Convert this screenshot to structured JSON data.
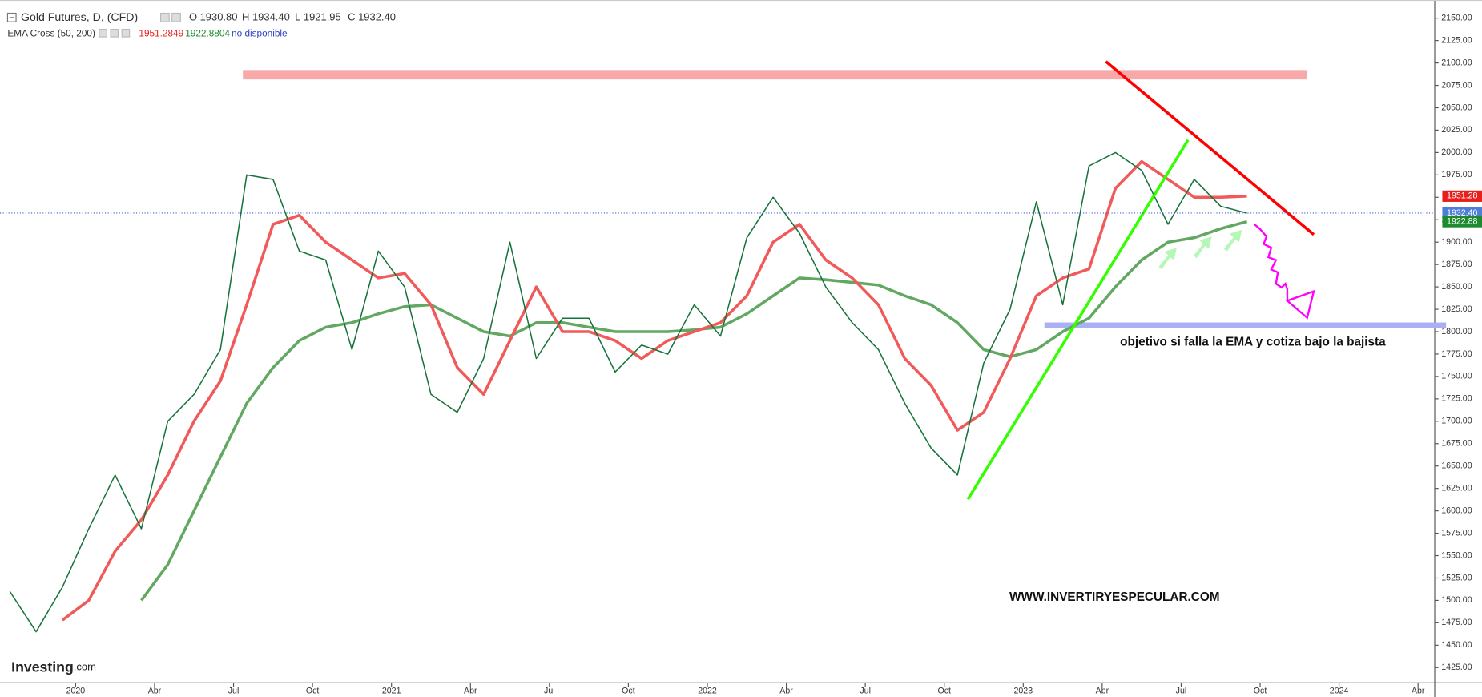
{
  "chart_data": {
    "type": "line",
    "title": "Gold Futures, D, (CFD)",
    "ohlc": [
      {
        "label": "O",
        "text": "1930.80"
      },
      {
        "label": "H",
        "text": "1934.40"
      },
      {
        "label": "L",
        "text": "1921.95"
      },
      {
        "label": "C",
        "text": "1932.40"
      }
    ],
    "indicator": {
      "name": "EMA Cross (50, 200)",
      "readouts": [
        {
          "text": "1951.2849",
          "color": "#e8201c"
        },
        {
          "text": "1922.8804",
          "color": "#1e8a2e"
        }
      ],
      "status": "no disponible"
    },
    "x": [
      "2019-10",
      "2019-11",
      "2019-12",
      "2020-01",
      "2020-02",
      "2020-03",
      "2020-04",
      "2020-05",
      "2020-06",
      "2020-07",
      "2020-08",
      "2020-09",
      "2020-10",
      "2020-11",
      "2020-12",
      "2021-01",
      "2021-02",
      "2021-03",
      "2021-04",
      "2021-05",
      "2021-06",
      "2021-07",
      "2021-08",
      "2021-09",
      "2021-10",
      "2021-11",
      "2021-12",
      "2022-01",
      "2022-02",
      "2022-03",
      "2022-04",
      "2022-05",
      "2022-06",
      "2022-07",
      "2022-08",
      "2022-09",
      "2022-10",
      "2022-11",
      "2022-12",
      "2023-01",
      "2023-02",
      "2023-03",
      "2023-04",
      "2023-05",
      "2023-06",
      "2023-07",
      "2023-08",
      "2023-09"
    ],
    "series": [
      {
        "color": "#16733a",
        "width": 1.3,
        "values": [
          1510,
          1465,
          1515,
          1580,
          1640,
          1580,
          1700,
          1730,
          1780,
          1975,
          1970,
          1890,
          1880,
          1780,
          1890,
          1850,
          1730,
          1710,
          1770,
          1900,
          1770,
          1815,
          1815,
          1755,
          1785,
          1775,
          1830,
          1795,
          1905,
          1950,
          1910,
          1850,
          1810,
          1780,
          1720,
          1670,
          1640,
          1765,
          1825,
          1945,
          1830,
          1985,
          2000,
          1980,
          1920,
          1970,
          1940,
          1932.4
        ]
      },
      {
        "color": "#f05a5a",
        "width": 3,
        "values": [
          null,
          null,
          1478,
          1500,
          1555,
          1590,
          1640,
          1700,
          1745,
          1830,
          1920,
          1930,
          1900,
          1880,
          1860,
          1865,
          1830,
          1760,
          1730,
          1790,
          1850,
          1800,
          1800,
          1790,
          1770,
          1790,
          1800,
          1810,
          1840,
          1900,
          1920,
          1880,
          1860,
          1830,
          1770,
          1740,
          1690,
          1710,
          1770,
          1840,
          1860,
          1870,
          1960,
          1990,
          1970,
          1950,
          1950,
          1951.28
        ]
      },
      {
        "color": "#62a862",
        "width": 3,
        "values": [
          null,
          null,
          null,
          null,
          null,
          1500,
          1540,
          1600,
          1660,
          1720,
          1760,
          1790,
          1805,
          1810,
          1820,
          1828,
          1830,
          1815,
          1800,
          1795,
          1810,
          1810,
          1805,
          1800,
          1800,
          1800,
          1802,
          1805,
          1820,
          1840,
          1860,
          1858,
          1855,
          1852,
          1840,
          1830,
          1810,
          1780,
          1772,
          1780,
          1800,
          1815,
          1850,
          1880,
          1900,
          1905,
          1915,
          1922.88
        ]
      }
    ],
    "ylim": [
      1408,
      2165
    ],
    "yticks": [
      {
        "value": 1425,
        "label": "1425.00"
      },
      {
        "value": 1450,
        "label": "1450.00"
      },
      {
        "value": 1475,
        "label": "1475.00"
      },
      {
        "value": 1500,
        "label": "1500.00"
      },
      {
        "value": 1525,
        "label": "1525.00"
      },
      {
        "value": 1550,
        "label": "1550.00"
      },
      {
        "value": 1575,
        "label": "1575.00"
      },
      {
        "value": 1600,
        "label": "1600.00"
      },
      {
        "value": 1625,
        "label": "1625.00"
      },
      {
        "value": 1650,
        "label": "1650.00"
      },
      {
        "value": 1675,
        "label": "1675.00"
      },
      {
        "value": 1700,
        "label": "1700.00"
      },
      {
        "value": 1725,
        "label": "1725.00"
      },
      {
        "value": 1750,
        "label": "1750.00"
      },
      {
        "value": 1775,
        "label": "1775.00"
      },
      {
        "value": 1800,
        "label": "1800.00"
      },
      {
        "value": 1825,
        "label": "1825.00"
      },
      {
        "value": 1850,
        "label": "1850.00"
      },
      {
        "value": 1875,
        "label": "1875.00"
      },
      {
        "value": 1900,
        "label": "1900.00"
      },
      {
        "value": 1925,
        "label": "1925.00"
      },
      {
        "value": 1950,
        "label": "1950.00"
      },
      {
        "value": 1975,
        "label": "1975.00"
      },
      {
        "value": 2000,
        "label": "2000.00"
      },
      {
        "value": 2025,
        "label": "2025.00"
      },
      {
        "value": 2050,
        "label": "2050.00"
      },
      {
        "value": 2075,
        "label": "2075.00"
      },
      {
        "value": 2100,
        "label": "2100.00"
      },
      {
        "value": 2125,
        "label": "2125.00"
      },
      {
        "value": 2150,
        "label": "2150.00"
      }
    ],
    "xticks": [
      {
        "value": "2020-01",
        "label": "2020"
      },
      {
        "value": "2020-04",
        "label": "Abr"
      },
      {
        "value": "2020-07",
        "label": "Jul"
      },
      {
        "value": "2020-10",
        "label": "Oct"
      },
      {
        "value": "2021-01",
        "label": "2021"
      },
      {
        "value": "2021-04",
        "label": "Abr"
      },
      {
        "value": "2021-07",
        "label": "Jul"
      },
      {
        "value": "2021-10",
        "label": "Oct"
      },
      {
        "value": "2022-01",
        "label": "2022"
      },
      {
        "value": "2022-04",
        "label": "Abr"
      },
      {
        "value": "2022-07",
        "label": "Jul"
      },
      {
        "value": "2022-10",
        "label": "Oct"
      },
      {
        "value": "2023-01",
        "label": "2023"
      },
      {
        "value": "2023-04",
        "label": "Abr"
      },
      {
        "value": "2023-07",
        "label": "Jul"
      },
      {
        "value": "2023-10",
        "label": "Oct"
      },
      {
        "value": "2024-01",
        "label": "2024"
      },
      {
        "value": "2024-04",
        "label": "Abr"
      }
    ],
    "price_labels": [
      {
        "value": 1951.28,
        "label": "1951.28",
        "color": "#e8201c"
      },
      {
        "value": 1932.4,
        "label": "1932.40",
        "color": "#4d7fd6"
      },
      {
        "value": 1922.88,
        "label": "1922.88",
        "color": "#1e8a2e"
      }
    ],
    "last_price_line_color": "#3b5bdb",
    "annotations": [
      "objetivo si falla la EMA y cotiza bajo la bajista",
      "WWW.INVERTIRYESPECULAR.COM"
    ],
    "watermark": [
      "Investing",
      ".com"
    ],
    "grid": false
  }
}
